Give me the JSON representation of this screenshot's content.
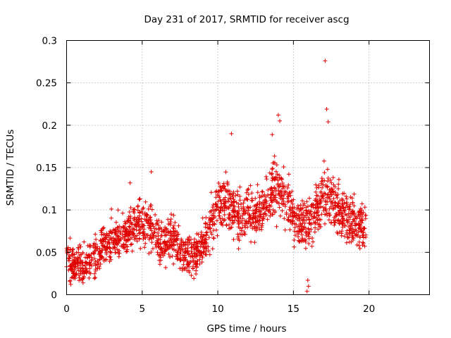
{
  "chart_data": {
    "type": "scatter",
    "title": "Day 231 of 2017, SRMTID for receiver ascg",
    "xlabel": "GPS time / hours",
    "ylabel": "SRMTID / TECUs",
    "xlim": [
      0,
      24
    ],
    "ylim": [
      0,
      0.3
    ],
    "x_ticks": [
      0,
      5,
      10,
      15,
      20
    ],
    "x_tick_labels": [
      "0",
      "5",
      "10",
      "15",
      "20"
    ],
    "y_ticks": [
      0,
      0.05,
      0.1,
      0.15,
      0.2,
      0.25,
      0.3
    ],
    "y_tick_labels": [
      "0",
      "0.05",
      "0.1",
      "0.15",
      "0.2",
      "0.25",
      "0.3"
    ],
    "grid": true,
    "marker": "+",
    "color": "#e00000",
    "series": [
      {
        "name": "SRMTID",
        "trend": [
          [
            0.0,
            0.04
          ],
          [
            0.5,
            0.038
          ],
          [
            1.0,
            0.032
          ],
          [
            1.5,
            0.04
          ],
          [
            2.0,
            0.045
          ],
          [
            2.5,
            0.058
          ],
          [
            3.0,
            0.066
          ],
          [
            3.5,
            0.068
          ],
          [
            4.0,
            0.072
          ],
          [
            4.5,
            0.082
          ],
          [
            5.0,
            0.085
          ],
          [
            5.5,
            0.082
          ],
          [
            6.0,
            0.066
          ],
          [
            6.5,
            0.06
          ],
          [
            7.0,
            0.068
          ],
          [
            7.5,
            0.058
          ],
          [
            8.0,
            0.045
          ],
          [
            8.5,
            0.046
          ],
          [
            9.0,
            0.062
          ],
          [
            9.5,
            0.078
          ],
          [
            10.0,
            0.108
          ],
          [
            10.5,
            0.112
          ],
          [
            11.0,
            0.098
          ],
          [
            11.5,
            0.092
          ],
          [
            12.0,
            0.1
          ],
          [
            12.5,
            0.095
          ],
          [
            13.0,
            0.1
          ],
          [
            13.5,
            0.12
          ],
          [
            14.0,
            0.128
          ],
          [
            14.5,
            0.11
          ],
          [
            15.0,
            0.092
          ],
          [
            15.5,
            0.086
          ],
          [
            16.0,
            0.082
          ],
          [
            16.5,
            0.096
          ],
          [
            17.0,
            0.12
          ],
          [
            17.5,
            0.115
          ],
          [
            18.0,
            0.098
          ],
          [
            18.5,
            0.092
          ],
          [
            19.0,
            0.086
          ],
          [
            19.5,
            0.082
          ],
          [
            19.8,
            0.08
          ]
        ],
        "x_range": [
          0.0,
          19.8
        ],
        "spread_min": 0.012,
        "spread_max": 0.055,
        "n_points": 1900,
        "notable_points": [
          [
            17.1,
            0.276
          ],
          [
            17.2,
            0.219
          ],
          [
            14.0,
            0.212
          ],
          [
            14.1,
            0.205
          ],
          [
            17.3,
            0.204
          ],
          [
            10.9,
            0.19
          ],
          [
            13.6,
            0.189
          ],
          [
            15.9,
            0.004
          ],
          [
            16.0,
            0.01
          ],
          [
            15.95,
            0.017
          ],
          [
            5.6,
            0.145
          ],
          [
            4.2,
            0.132
          ]
        ]
      }
    ]
  }
}
